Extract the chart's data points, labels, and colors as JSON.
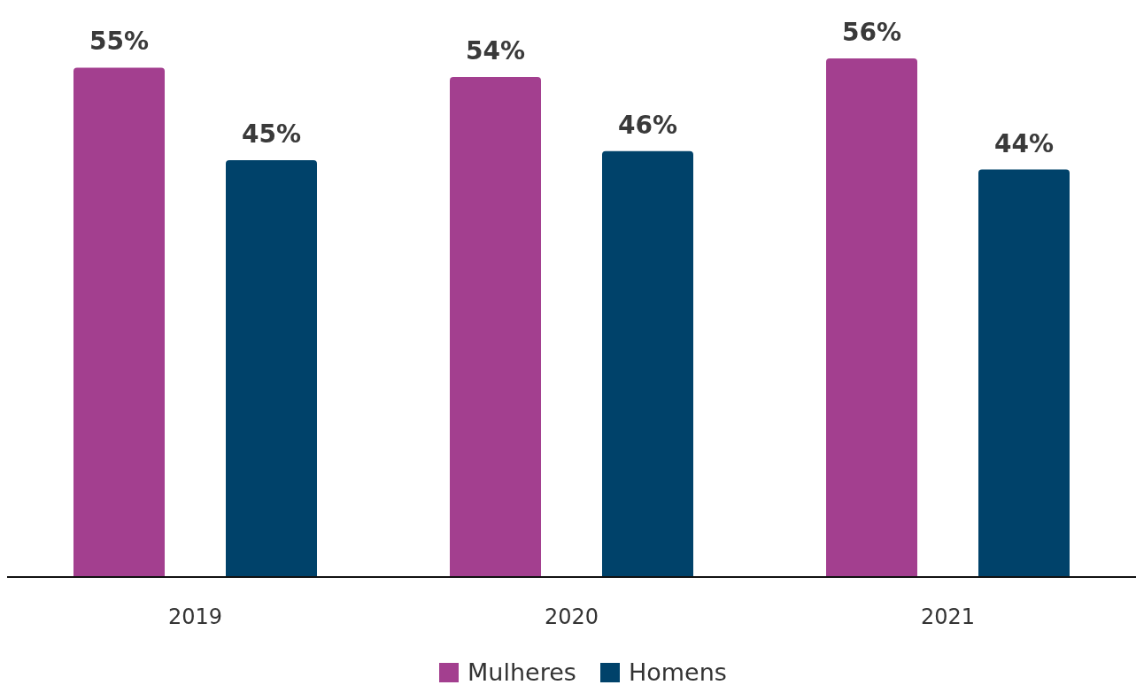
{
  "chart_data": {
    "type": "bar",
    "categories": [
      "2019",
      "2020",
      "2021"
    ],
    "series": [
      {
        "name": "Mulheres",
        "color": "#a33f8f",
        "values": [
          55,
          54,
          56
        ],
        "value_labels": [
          "55%",
          "54%",
          "56%"
        ]
      },
      {
        "name": "Homens",
        "color": "#00426a",
        "values": [
          45,
          46,
          44
        ],
        "value_labels": [
          "45%",
          "46%",
          "44%"
        ]
      }
    ],
    "legend": "bottom"
  }
}
